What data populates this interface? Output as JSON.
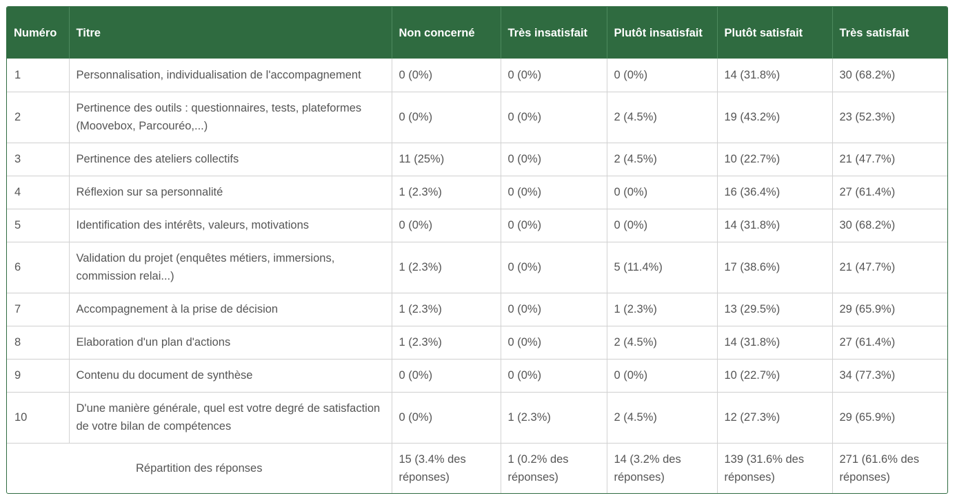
{
  "table": {
    "headers": [
      "Numéro",
      "Titre",
      "Non concerné",
      "Très insatisfait",
      "Plutôt insatisfait",
      "Plutôt satisfait",
      "Très satisfait"
    ],
    "rows": [
      {
        "num": "1",
        "title": "Personnalisation, individualisation de l'accompagnement",
        "c1": "0 (0%)",
        "c2": "0 (0%)",
        "c3": "0 (0%)",
        "c4": "14 (31.8%)",
        "c5": "30 (68.2%)"
      },
      {
        "num": "2",
        "title": "Pertinence des outils : questionnaires, tests, plateformes (Moovebox, Parcouréo,...)",
        "c1": "0 (0%)",
        "c2": "0 (0%)",
        "c3": "2 (4.5%)",
        "c4": "19 (43.2%)",
        "c5": "23 (52.3%)"
      },
      {
        "num": "3",
        "title": "Pertinence des ateliers collectifs",
        "c1": "11 (25%)",
        "c2": "0 (0%)",
        "c3": "2 (4.5%)",
        "c4": "10 (22.7%)",
        "c5": "21 (47.7%)"
      },
      {
        "num": "4",
        "title": "Réflexion sur sa personnalité",
        "c1": "1 (2.3%)",
        "c2": "0 (0%)",
        "c3": "0 (0%)",
        "c4": "16 (36.4%)",
        "c5": "27 (61.4%)"
      },
      {
        "num": "5",
        "title": "Identification des intérêts, valeurs, motivations",
        "c1": "0 (0%)",
        "c2": "0 (0%)",
        "c3": "0 (0%)",
        "c4": "14 (31.8%)",
        "c5": "30 (68.2%)"
      },
      {
        "num": "6",
        "title": "Validation du projet (enquêtes métiers, immersions, commission relai...)",
        "c1": "1 (2.3%)",
        "c2": "0 (0%)",
        "c3": "5 (11.4%)",
        "c4": "17 (38.6%)",
        "c5": "21 (47.7%)"
      },
      {
        "num": "7",
        "title": "Accompagnement à la prise de décision",
        "c1": "1 (2.3%)",
        "c2": "0 (0%)",
        "c3": "1 (2.3%)",
        "c4": "13 (29.5%)",
        "c5": "29 (65.9%)"
      },
      {
        "num": "8",
        "title": "Elaboration d'un plan d'actions",
        "c1": "1 (2.3%)",
        "c2": "0 (0%)",
        "c3": "2 (4.5%)",
        "c4": "14 (31.8%)",
        "c5": "27 (61.4%)"
      },
      {
        "num": "9",
        "title": "Contenu du document de synthèse",
        "c1": "0 (0%)",
        "c2": "0 (0%)",
        "c3": "0 (0%)",
        "c4": "10 (22.7%)",
        "c5": "34 (77.3%)"
      },
      {
        "num": "10",
        "title": "D'une manière générale, quel est votre degré de satisfaction de votre bilan de compétences",
        "c1": "0 (0%)",
        "c2": "1 (2.3%)",
        "c3": "2 (4.5%)",
        "c4": "12 (27.3%)",
        "c5": "29 (65.9%)"
      }
    ],
    "summary": {
      "label": "Répartition des réponses",
      "c1": "15 (3.4% des réponses)",
      "c2": "1 (0.2% des réponses)",
      "c3": "14 (3.2% des réponses)",
      "c4": "139 (31.6% des réponses)",
      "c5": "271 (61.6% des réponses)"
    }
  },
  "colors": {
    "header_bg": "#2f6b40",
    "header_text": "#ffffff",
    "body_text": "#555555",
    "border": "#cfcfcf"
  }
}
